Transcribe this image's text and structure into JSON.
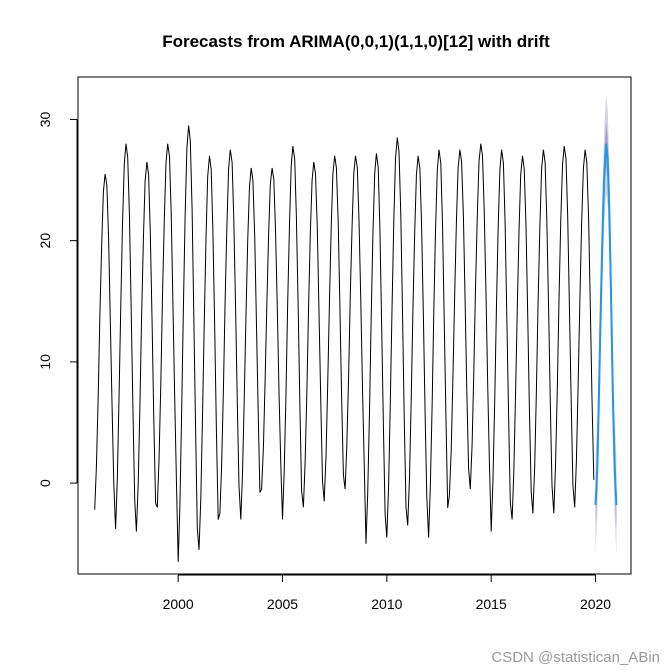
{
  "chart_data": {
    "type": "line",
    "title": "Forecasts from ARIMA(0,0,1)(1,1,0)[12] with drift",
    "xlabel": "",
    "ylabel": "",
    "xlim": [
      1995.2,
      2021.7
    ],
    "ylim": [
      -7.5,
      33.5
    ],
    "x_ticks": [
      2000,
      2005,
      2010,
      2015,
      2020
    ],
    "y_ticks": [
      0,
      10,
      20,
      30
    ],
    "grid": false,
    "legend": "none",
    "history": {
      "start_year": 1996,
      "month_shape": [
        -2.2,
        1.5,
        7.5,
        14.5,
        20.5,
        25.0,
        26.5,
        25.5,
        21.0,
        14.0,
        6.5,
        0.0
      ],
      "summer_peaks": [
        25.5,
        28.0,
        26.5,
        28.0,
        29.5,
        27.0,
        27.5,
        26.0,
        26.0,
        27.8,
        26.5,
        27.0,
        27.0,
        27.2,
        28.5,
        27.0,
        27.5,
        27.5,
        28.0,
        27.5,
        27.0,
        27.5,
        27.8,
        27.5
      ],
      "winter_troughs": [
        -2.2,
        -3.8,
        -4.0,
        -2.0,
        -6.5,
        -5.5,
        -2.5,
        -3.0,
        -0.5,
        -3.0,
        -2.0,
        -1.5,
        -0.5,
        -5.0,
        -4.5,
        -3.5,
        -4.5,
        -1.0,
        -0.5,
        -4.0,
        -3.0,
        -2.5,
        -2.5,
        -2.0
      ],
      "color": "#000000"
    },
    "forecast": {
      "start": 2020.0,
      "values": [
        -1.8,
        1.2,
        7.5,
        14.2,
        20.5,
        25.2,
        28.0,
        26.8,
        22.2,
        14.8,
        7.0,
        1.2,
        -1.8
      ],
      "lo80": [
        -3.6,
        -0.6,
        5.7,
        12.4,
        18.7,
        23.4,
        26.2,
        25.0,
        20.4,
        13.0,
        5.2,
        -0.6,
        -3.8
      ],
      "hi80": [
        0.0,
        3.0,
        9.3,
        16.0,
        22.3,
        27.0,
        29.8,
        28.6,
        24.0,
        16.6,
        8.8,
        3.0,
        0.2
      ],
      "lo95": [
        -5.8,
        -2.8,
        3.5,
        10.2,
        16.5,
        21.2,
        24.0,
        22.8,
        18.2,
        10.8,
        3.0,
        -2.8,
        -6.0
      ],
      "hi95": [
        2.2,
        5.2,
        11.5,
        18.2,
        24.5,
        29.2,
        32.0,
        30.8,
        26.2,
        18.8,
        11.0,
        5.2,
        2.4
      ],
      "line_color": "#2297E6",
      "band80_color": "#a3a3c8",
      "band95_color": "#d3d3e6"
    }
  },
  "watermark": "CSDN @statistican_ABin"
}
